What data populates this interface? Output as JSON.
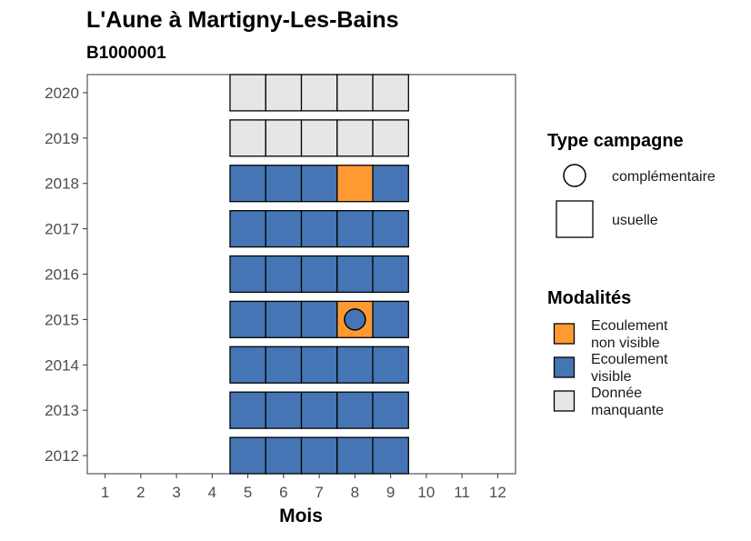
{
  "chart_data": {
    "type": "heatmap",
    "title": "L'Aune à Martigny-Les-Bains",
    "subtitle": "B1000001",
    "xlabel": "Mois",
    "ylabel": "",
    "x_ticks": [
      1,
      2,
      3,
      4,
      5,
      6,
      7,
      8,
      9,
      10,
      11,
      12
    ],
    "y_ticks": [
      2012,
      2013,
      2014,
      2015,
      2016,
      2017,
      2018,
      2019,
      2020
    ],
    "xlim": [
      0.5,
      12.5
    ],
    "ylim": [
      2011.6,
      2020.4
    ],
    "grid": false,
    "legend_position": "right",
    "legends": {
      "type_campagne": {
        "title": "Type campagne",
        "items": [
          {
            "key": "complementaire",
            "label": "complémentaire",
            "shape": "circle"
          },
          {
            "key": "usuelle",
            "label": "usuelle",
            "shape": "square"
          }
        ]
      },
      "modalites": {
        "title": "Modalités",
        "items": [
          {
            "key": "ecoulement_non_visible",
            "label_lines": [
              "Ecoulement",
              "non visible"
            ],
            "color": "#FF9A33"
          },
          {
            "key": "ecoulement_visible",
            "label_lines": [
              "Ecoulement",
              "visible"
            ],
            "color": "#4575B4"
          },
          {
            "key": "donnee_manquante",
            "label_lines": [
              "Donnée",
              "manquante"
            ],
            "color": "#E6E6E6"
          }
        ]
      }
    },
    "cells": [
      {
        "year": 2012,
        "month": 5,
        "modalite": "ecoulement_visible",
        "campagne": "usuelle"
      },
      {
        "year": 2012,
        "month": 6,
        "modalite": "ecoulement_visible",
        "campagne": "usuelle"
      },
      {
        "year": 2012,
        "month": 7,
        "modalite": "ecoulement_visible",
        "campagne": "usuelle"
      },
      {
        "year": 2012,
        "month": 8,
        "modalite": "ecoulement_visible",
        "campagne": "usuelle"
      },
      {
        "year": 2012,
        "month": 9,
        "modalite": "ecoulement_visible",
        "campagne": "usuelle"
      },
      {
        "year": 2013,
        "month": 5,
        "modalite": "ecoulement_visible",
        "campagne": "usuelle"
      },
      {
        "year": 2013,
        "month": 6,
        "modalite": "ecoulement_visible",
        "campagne": "usuelle"
      },
      {
        "year": 2013,
        "month": 7,
        "modalite": "ecoulement_visible",
        "campagne": "usuelle"
      },
      {
        "year": 2013,
        "month": 8,
        "modalite": "ecoulement_visible",
        "campagne": "usuelle"
      },
      {
        "year": 2013,
        "month": 9,
        "modalite": "ecoulement_visible",
        "campagne": "usuelle"
      },
      {
        "year": 2014,
        "month": 5,
        "modalite": "ecoulement_visible",
        "campagne": "usuelle"
      },
      {
        "year": 2014,
        "month": 6,
        "modalite": "ecoulement_visible",
        "campagne": "usuelle"
      },
      {
        "year": 2014,
        "month": 7,
        "modalite": "ecoulement_visible",
        "campagne": "usuelle"
      },
      {
        "year": 2014,
        "month": 8,
        "modalite": "ecoulement_visible",
        "campagne": "usuelle"
      },
      {
        "year": 2014,
        "month": 9,
        "modalite": "ecoulement_visible",
        "campagne": "usuelle"
      },
      {
        "year": 2015,
        "month": 5,
        "modalite": "ecoulement_visible",
        "campagne": "usuelle"
      },
      {
        "year": 2015,
        "month": 6,
        "modalite": "ecoulement_visible",
        "campagne": "usuelle"
      },
      {
        "year": 2015,
        "month": 7,
        "modalite": "ecoulement_visible",
        "campagne": "usuelle"
      },
      {
        "year": 2015,
        "month": 8,
        "modalite": "ecoulement_non_visible",
        "campagne": "usuelle"
      },
      {
        "year": 2015,
        "month": 8,
        "modalite": "ecoulement_visible",
        "campagne": "complementaire"
      },
      {
        "year": 2015,
        "month": 9,
        "modalite": "ecoulement_visible",
        "campagne": "usuelle"
      },
      {
        "year": 2016,
        "month": 5,
        "modalite": "ecoulement_visible",
        "campagne": "usuelle"
      },
      {
        "year": 2016,
        "month": 6,
        "modalite": "ecoulement_visible",
        "campagne": "usuelle"
      },
      {
        "year": 2016,
        "month": 7,
        "modalite": "ecoulement_visible",
        "campagne": "usuelle"
      },
      {
        "year": 2016,
        "month": 8,
        "modalite": "ecoulement_visible",
        "campagne": "usuelle"
      },
      {
        "year": 2016,
        "month": 9,
        "modalite": "ecoulement_visible",
        "campagne": "usuelle"
      },
      {
        "year": 2017,
        "month": 5,
        "modalite": "ecoulement_visible",
        "campagne": "usuelle"
      },
      {
        "year": 2017,
        "month": 6,
        "modalite": "ecoulement_visible",
        "campagne": "usuelle"
      },
      {
        "year": 2017,
        "month": 7,
        "modalite": "ecoulement_visible",
        "campagne": "usuelle"
      },
      {
        "year": 2017,
        "month": 8,
        "modalite": "ecoulement_visible",
        "campagne": "usuelle"
      },
      {
        "year": 2017,
        "month": 9,
        "modalite": "ecoulement_visible",
        "campagne": "usuelle"
      },
      {
        "year": 2018,
        "month": 5,
        "modalite": "ecoulement_visible",
        "campagne": "usuelle"
      },
      {
        "year": 2018,
        "month": 6,
        "modalite": "ecoulement_visible",
        "campagne": "usuelle"
      },
      {
        "year": 2018,
        "month": 7,
        "modalite": "ecoulement_visible",
        "campagne": "usuelle"
      },
      {
        "year": 2018,
        "month": 8,
        "modalite": "ecoulement_non_visible",
        "campagne": "usuelle"
      },
      {
        "year": 2018,
        "month": 9,
        "modalite": "ecoulement_visible",
        "campagne": "usuelle"
      },
      {
        "year": 2019,
        "month": 5,
        "modalite": "donnee_manquante",
        "campagne": "usuelle"
      },
      {
        "year": 2019,
        "month": 6,
        "modalite": "donnee_manquante",
        "campagne": "usuelle"
      },
      {
        "year": 2019,
        "month": 7,
        "modalite": "donnee_manquante",
        "campagne": "usuelle"
      },
      {
        "year": 2019,
        "month": 8,
        "modalite": "donnee_manquante",
        "campagne": "usuelle"
      },
      {
        "year": 2019,
        "month": 9,
        "modalite": "donnee_manquante",
        "campagne": "usuelle"
      },
      {
        "year": 2020,
        "month": 5,
        "modalite": "donnee_manquante",
        "campagne": "usuelle"
      },
      {
        "year": 2020,
        "month": 6,
        "modalite": "donnee_manquante",
        "campagne": "usuelle"
      },
      {
        "year": 2020,
        "month": 7,
        "modalite": "donnee_manquante",
        "campagne": "usuelle"
      },
      {
        "year": 2020,
        "month": 8,
        "modalite": "donnee_manquante",
        "campagne": "usuelle"
      },
      {
        "year": 2020,
        "month": 9,
        "modalite": "donnee_manquante",
        "campagne": "usuelle"
      }
    ]
  }
}
